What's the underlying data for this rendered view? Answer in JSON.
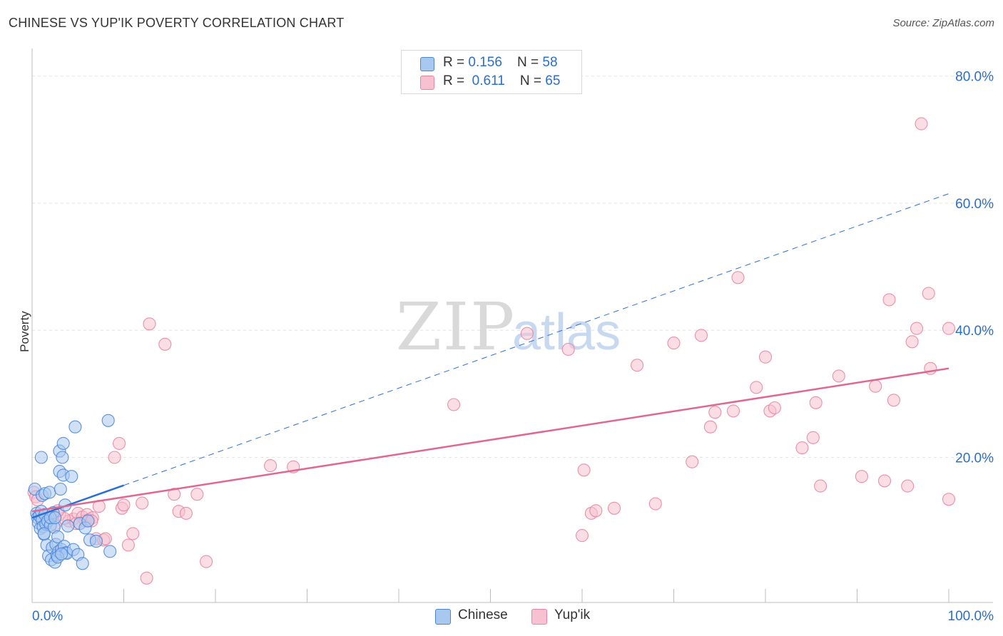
{
  "header": {
    "title": "CHINESE VS YUP'IK POVERTY CORRELATION CHART",
    "source": "Source: ZipAtlas.com"
  },
  "watermark": {
    "zip": "ZIP",
    "atlas": "atlas"
  },
  "legend": {
    "rows": [
      {
        "r_label": "R = ",
        "r_value": "0.156",
        "n_label": "N = ",
        "n_value": "58"
      },
      {
        "r_label": "R = ",
        "r_value": "0.611",
        "n_label": "N = ",
        "n_value": "65"
      }
    ],
    "series_names": [
      "Chinese",
      "Yup'ik"
    ]
  },
  "colors": {
    "chinese_fill": "#a9c8f0",
    "chinese_stroke": "#4a86d8",
    "chinese_line": "#2a6fd6",
    "yupik_fill": "#f8c1d1",
    "yupik_stroke": "#e8859f",
    "yupik_line": "#e06890",
    "axis_label": "#2a6fca",
    "grid": "#e3e3e3"
  },
  "chart_data": {
    "type": "scatter",
    "title": "CHINESE VS YUP'IK POVERTY CORRELATION CHART",
    "xlabel": "",
    "ylabel": "Poverty",
    "xlim": [
      0,
      100
    ],
    "ylim": [
      -2.5,
      83
    ],
    "x_tick_labels": [
      "0.0%",
      "100.0%"
    ],
    "y_ticks": [
      20,
      40,
      60,
      80
    ],
    "y_tick_labels": [
      "20.0%",
      "40.0%",
      "60.0%",
      "80.0%"
    ],
    "grid": true,
    "legend_position": "top-center",
    "series": [
      {
        "name": "Chinese",
        "r": 0.156,
        "n": 58,
        "points": [
          [
            0.3,
            15.0
          ],
          [
            0.5,
            11.2
          ],
          [
            0.6,
            10.5
          ],
          [
            0.7,
            9.7
          ],
          [
            0.8,
            10.8
          ],
          [
            0.9,
            8.8
          ],
          [
            1.0,
            20.0
          ],
          [
            1.0,
            11.5
          ],
          [
            1.1,
            14.0
          ],
          [
            1.1,
            10.2
          ],
          [
            1.2,
            9.1
          ],
          [
            1.3,
            7.9
          ],
          [
            1.4,
            14.3
          ],
          [
            1.4,
            11.0
          ],
          [
            1.5,
            9.5
          ],
          [
            1.6,
            6.2
          ],
          [
            1.7,
            10.0
          ],
          [
            1.8,
            4.5
          ],
          [
            1.9,
            14.5
          ],
          [
            2.0,
            9.3
          ],
          [
            2.1,
            3.9
          ],
          [
            2.2,
            5.8
          ],
          [
            2.3,
            11.3
          ],
          [
            2.4,
            9.0
          ],
          [
            2.5,
            3.5
          ],
          [
            2.6,
            6.3
          ],
          [
            2.7,
            4.6
          ],
          [
            2.8,
            7.5
          ],
          [
            2.9,
            5.2
          ],
          [
            3.0,
            21.0
          ],
          [
            3.0,
            17.8
          ],
          [
            3.1,
            15.0
          ],
          [
            3.2,
            5.5
          ],
          [
            3.3,
            20.0
          ],
          [
            3.4,
            22.2
          ],
          [
            3.4,
            17.2
          ],
          [
            3.5,
            6.0
          ],
          [
            3.7,
            5.0
          ],
          [
            3.8,
            4.9
          ],
          [
            1.3,
            8.0
          ],
          [
            2.0,
            10.5
          ],
          [
            2.5,
            10.5
          ],
          [
            2.8,
            4.3
          ],
          [
            3.2,
            4.8
          ],
          [
            3.6,
            12.5
          ],
          [
            3.9,
            9.2
          ],
          [
            4.3,
            17.0
          ],
          [
            4.5,
            5.5
          ],
          [
            4.7,
            24.8
          ],
          [
            5.0,
            4.7
          ],
          [
            5.2,
            9.6
          ],
          [
            5.5,
            3.3
          ],
          [
            5.8,
            8.9
          ],
          [
            6.1,
            10.0
          ],
          [
            6.3,
            7.0
          ],
          [
            7.0,
            6.8
          ],
          [
            8.5,
            5.2
          ],
          [
            8.3,
            25.8
          ]
        ],
        "trendline": {
          "x0": 0,
          "y0": 10.5,
          "x1": 100,
          "y1": 61.5,
          "solid_until_x": 10
        }
      },
      {
        "name": "Yup'ik",
        "r": 0.611,
        "n": 65,
        "points": [
          [
            0.2,
            14.5
          ],
          [
            0.4,
            13.8
          ],
          [
            0.6,
            13.3
          ],
          [
            1.0,
            10.3
          ],
          [
            1.5,
            9.6
          ],
          [
            2.0,
            10.2
          ],
          [
            2.5,
            9.5
          ],
          [
            3.0,
            11.0
          ],
          [
            4.0,
            10.0
          ],
          [
            4.5,
            10.3
          ],
          [
            5.0,
            11.2
          ],
          [
            5.5,
            10.6
          ],
          [
            5.8,
            10.0
          ],
          [
            6.0,
            11.0
          ],
          [
            6.2,
            10.2
          ],
          [
            6.6,
            10.5
          ],
          [
            7.0,
            7.2
          ],
          [
            7.3,
            12.3
          ],
          [
            7.8,
            7.0
          ],
          [
            8.0,
            7.2
          ],
          [
            6.5,
            10.0
          ],
          [
            4.8,
            9.6
          ],
          [
            3.5,
            10.4
          ],
          [
            2.8,
            11.6
          ],
          [
            9.0,
            20.0
          ],
          [
            9.5,
            22.2
          ],
          [
            9.8,
            12.0
          ],
          [
            10.0,
            12.5
          ],
          [
            10.5,
            6.2
          ],
          [
            11.0,
            8.0
          ],
          [
            12.0,
            12.8
          ],
          [
            12.5,
            1.0
          ],
          [
            12.8,
            41.0
          ],
          [
            14.5,
            37.8
          ],
          [
            15.5,
            14.2
          ],
          [
            16.0,
            11.5
          ],
          [
            16.8,
            11.2
          ],
          [
            18.0,
            14.2
          ],
          [
            19.0,
            3.6
          ],
          [
            26.0,
            18.7
          ],
          [
            28.5,
            18.5
          ],
          [
            46.0,
            28.3
          ],
          [
            54.0,
            39.5
          ],
          [
            58.5,
            37.0
          ],
          [
            60.0,
            7.7
          ],
          [
            60.2,
            18.0
          ],
          [
            61.0,
            11.2
          ],
          [
            61.5,
            11.6
          ],
          [
            63.5,
            12.0
          ],
          [
            66.0,
            34.5
          ],
          [
            68.0,
            12.7
          ],
          [
            70.0,
            38.0
          ],
          [
            72.0,
            19.3
          ],
          [
            73.0,
            39.2
          ],
          [
            74.0,
            24.8
          ],
          [
            74.5,
            27.1
          ],
          [
            76.5,
            27.3
          ],
          [
            77.0,
            48.3
          ],
          [
            79.0,
            31.0
          ],
          [
            80.0,
            35.8
          ],
          [
            80.5,
            27.3
          ],
          [
            81.0,
            27.8
          ],
          [
            84.0,
            21.5
          ],
          [
            85.5,
            28.6
          ],
          [
            86.0,
            15.5
          ]
        ],
        "trendline": {
          "x0": 0,
          "y0": 11.5,
          "x1": 100,
          "y1": 34.0,
          "solid_until_x": 100
        }
      }
    ],
    "extra_yupik_points": [
      [
        85.2,
        23.1
      ],
      [
        88.0,
        32.8
      ],
      [
        90.5,
        17.0
      ],
      [
        92.0,
        31.2
      ],
      [
        93.0,
        16.3
      ],
      [
        93.5,
        44.8
      ],
      [
        94.0,
        29.0
      ],
      [
        95.5,
        15.5
      ],
      [
        96.0,
        38.2
      ],
      [
        96.5,
        40.3
      ],
      [
        97.0,
        72.5
      ],
      [
        97.8,
        45.8
      ],
      [
        98.0,
        34.0
      ],
      [
        100.0,
        13.4
      ],
      [
        100.0,
        40.3
      ]
    ]
  }
}
